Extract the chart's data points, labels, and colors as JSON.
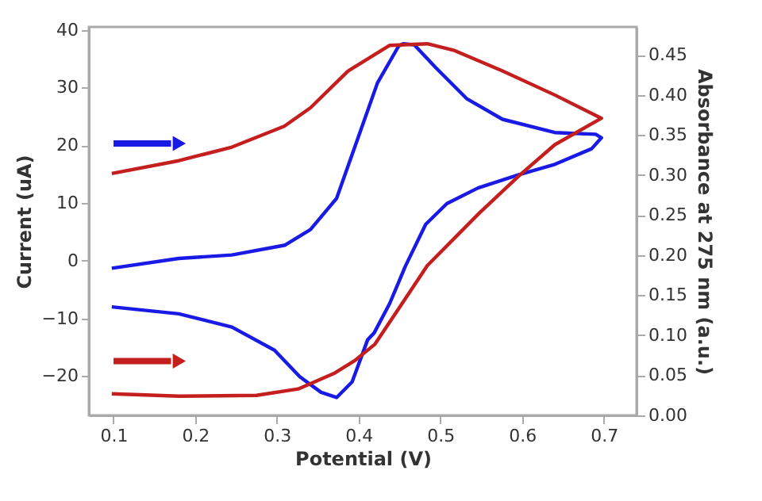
{
  "chart_data": {
    "type": "line",
    "xlabel": "Potential (V)",
    "ylabel": "Current (uA)",
    "y2label": "Absorbance at 275 nm (a.u.)",
    "xlim": [
      0.07,
      0.74
    ],
    "xticks": [
      0.1,
      0.2,
      0.3,
      0.4,
      0.5,
      0.6,
      0.7
    ],
    "ylim": [
      -26.8,
      40.5
    ],
    "yticks": [
      -20,
      -10,
      0,
      10,
      20,
      30,
      40
    ],
    "y2lim": [
      0,
      0.485
    ],
    "y2ticks": [
      {
        "value": 0,
        "label": "0.00"
      },
      {
        "value": 0.05,
        "label": "0.05"
      },
      {
        "value": 0.1,
        "label": "0.10"
      },
      {
        "value": 0.15,
        "label": "0.15"
      },
      {
        "value": 0.2,
        "label": "0.20"
      },
      {
        "value": 0.25,
        "label": "0.25"
      },
      {
        "value": 0.3,
        "label": "0.30"
      },
      {
        "value": 0.35,
        "label": "0.35"
      },
      {
        "value": 0.4,
        "label": "0.40"
      },
      {
        "value": 0.45,
        "label": "0.45"
      }
    ],
    "grid": false,
    "line_style": "solid",
    "marker": "none",
    "series": [
      {
        "color": "#1a1ae6",
        "x": [
          0.098,
          0.18,
          0.245,
          0.31,
          0.341,
          0.373,
          0.398,
          0.423,
          0.449,
          0.455,
          0.468,
          0.494,
          0.532,
          0.576,
          0.64,
          0.69,
          0.697,
          0.685,
          0.64,
          0.596,
          0.546,
          0.508,
          0.482,
          0.457,
          0.438,
          0.419,
          0.411,
          0.392,
          0.373,
          0.354,
          0.328,
          0.297,
          0.245,
          0.18,
          0.098
        ],
        "values": [
          -1.3,
          0.4,
          1.0,
          2.7,
          5.4,
          10.8,
          20.8,
          30.8,
          37.2,
          37.6,
          37.4,
          33.5,
          28.1,
          24.5,
          22.2,
          21.9,
          21.3,
          19.4,
          16.7,
          14.9,
          12.6,
          9.9,
          6.3,
          -1.0,
          -7.4,
          -12.5,
          -13.7,
          -21.0,
          -23.7,
          -22.8,
          -20.1,
          -15.5,
          -11.5,
          -9.2,
          -8.0
        ]
      },
      {
        "color": "#c41e1e",
        "axis": "y2",
        "x": [
          0.098,
          0.18,
          0.275,
          0.326,
          0.371,
          0.396,
          0.42,
          0.484,
          0.548,
          0.596,
          0.64,
          0.697,
          0.64,
          0.576,
          0.516,
          0.484,
          0.438,
          0.387,
          0.341,
          0.309,
          0.245,
          0.18,
          0.098
        ],
        "values": [
          0.027,
          0.024,
          0.025,
          0.033,
          0.053,
          0.069,
          0.089,
          0.187,
          0.253,
          0.299,
          0.338,
          0.371,
          0.4,
          0.43,
          0.456,
          0.464,
          0.462,
          0.43,
          0.384,
          0.361,
          0.335,
          0.318,
          0.302
        ]
      }
    ]
  }
}
